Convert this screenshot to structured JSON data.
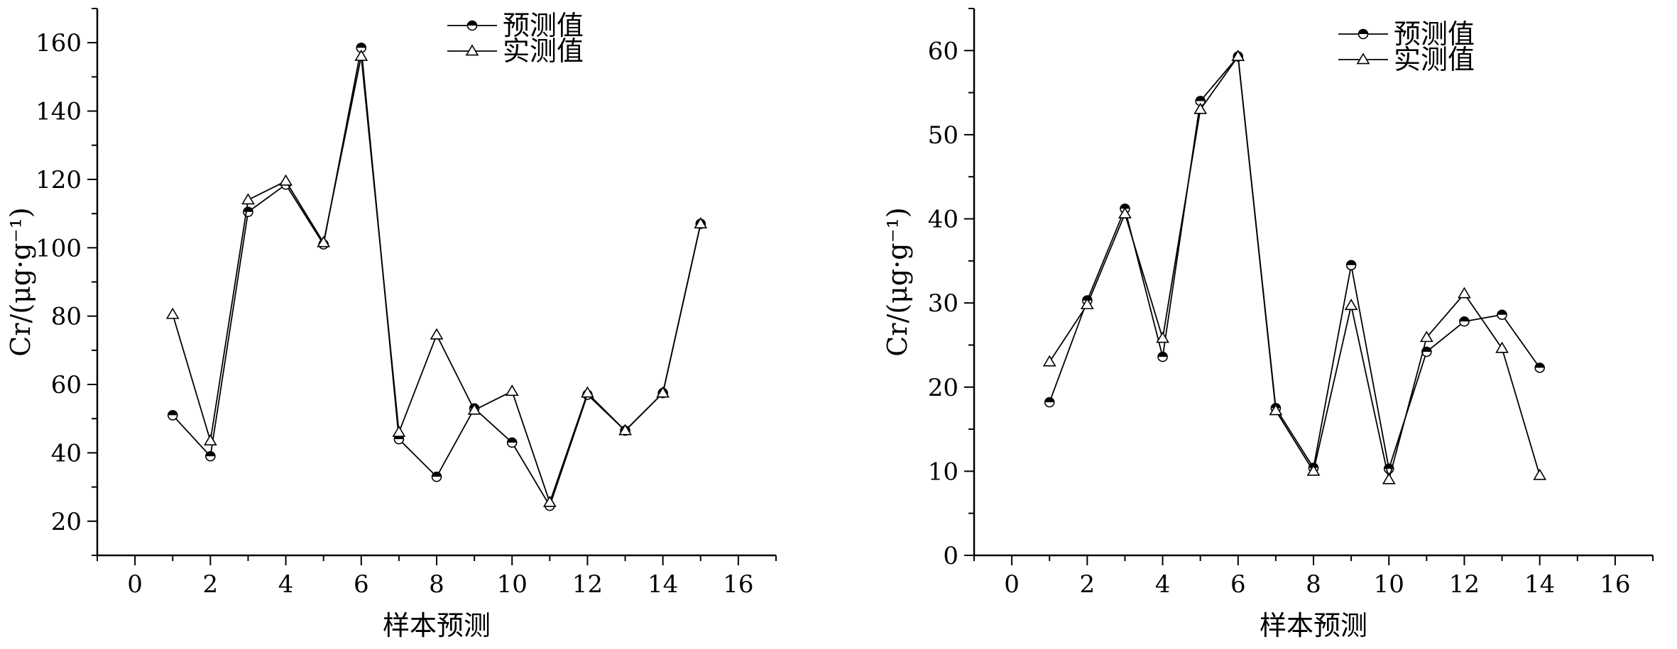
{
  "chart_data": [
    {
      "type": "line",
      "title": "",
      "xlabel": "样本预测",
      "ylabel": "Cr/(μg·g⁻¹)",
      "xlim": [
        -1,
        17
      ],
      "ylim": [
        10,
        170
      ],
      "x_ticks": [
        "0",
        "2",
        "4",
        "6",
        "8",
        "10",
        "12",
        "14",
        "16"
      ],
      "y_ticks": [
        "20",
        "40",
        "60",
        "80",
        "100",
        "120",
        "140",
        "160"
      ],
      "legend_position": "top-center",
      "x": [
        1,
        2,
        3,
        4,
        5,
        6,
        7,
        8,
        9,
        10,
        11,
        12,
        13,
        14,
        15
      ],
      "series": [
        {
          "name": "预测值",
          "marker": "half-filled-circle",
          "values": [
            51,
            39,
            110.5,
            118.5,
            101,
            158.5,
            44,
            33,
            53,
            43,
            24.5,
            57,
            46.5,
            57.5,
            107
          ]
        },
        {
          "name": "实测值",
          "marker": "triangle",
          "values": [
            80.5,
            43.5,
            114,
            119.5,
            101.5,
            156,
            46,
            74.5,
            52.5,
            58,
            25.5,
            57.5,
            46.5,
            57.5,
            107
          ]
        }
      ]
    },
    {
      "type": "line",
      "title": "",
      "xlabel": "样本预测",
      "ylabel": "Cr/(μg·g⁻¹)",
      "xlim": [
        -1,
        17
      ],
      "ylim": [
        0,
        65
      ],
      "x_ticks": [
        "0",
        "2",
        "4",
        "6",
        "8",
        "10",
        "12",
        "14",
        "16"
      ],
      "y_ticks": [
        "0",
        "10",
        "20",
        "30",
        "40",
        "50",
        "60"
      ],
      "legend_position": "top-center",
      "x": [
        1,
        2,
        3,
        4,
        5,
        6,
        7,
        8,
        9,
        10,
        11,
        12,
        13,
        14
      ],
      "series": [
        {
          "name": "预测值",
          "marker": "half-filled-circle",
          "values": [
            18.2,
            30.3,
            41.2,
            23.6,
            54,
            59.3,
            17.5,
            10.4,
            34.5,
            10.3,
            24.2,
            27.8,
            28.6,
            22.3
          ]
        },
        {
          "name": "实测值",
          "marker": "triangle",
          "values": [
            23,
            29.8,
            40.6,
            25.8,
            53,
            59.3,
            17.2,
            10,
            29.7,
            9,
            25.9,
            31.1,
            24.6,
            9.5
          ]
        }
      ]
    }
  ]
}
